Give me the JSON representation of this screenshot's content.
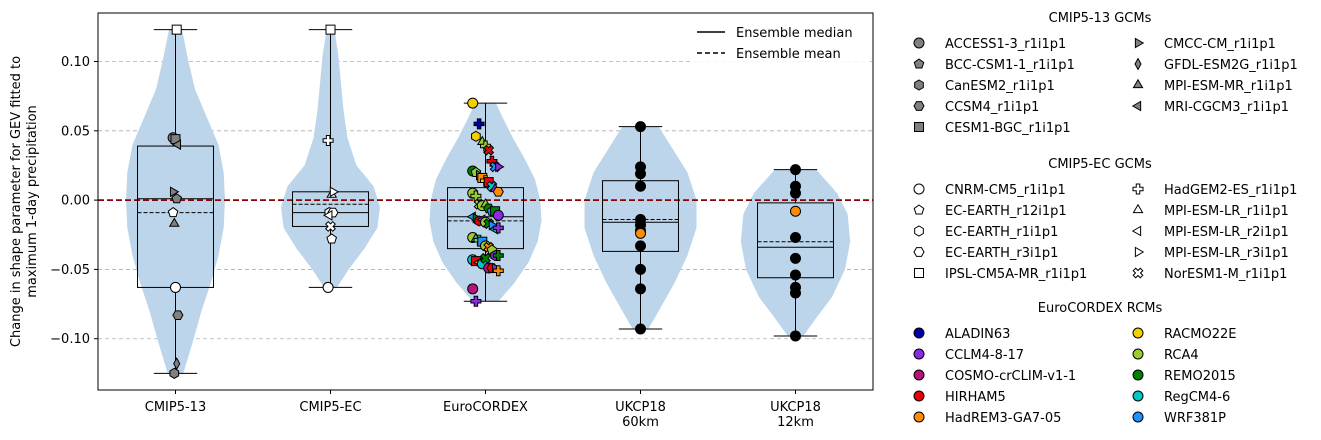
{
  "chart_data": {
    "type": "violin",
    "ylabel_lines": [
      "Change in shape parameter for GEV fitted to",
      "maximum 1-day precipitation"
    ],
    "ylim": [
      -0.137,
      0.135
    ],
    "yticks": [
      {
        "v": -0.1,
        "t": "−0.10"
      },
      {
        "v": -0.05,
        "t": "−0.05"
      },
      {
        "v": 0.0,
        "t": "0.00"
      },
      {
        "v": 0.05,
        "t": "0.05"
      },
      {
        "v": 0.1,
        "t": "0.10"
      }
    ],
    "grid": "horizontal dashed",
    "reference_line": {
      "value": 0.0,
      "color": "#8b0000",
      "style": "dashed"
    },
    "violin_color": "#bcd5ea",
    "categories": [
      {
        "label": [
          "CMIP5-13"
        ],
        "median": 0.001,
        "mean": -0.009,
        "q1": -0.063,
        "q3": 0.039,
        "min": -0.125,
        "max": 0.123,
        "violin": [
          [
            -0.125,
            0.06
          ],
          [
            -0.1,
            0.14
          ],
          [
            -0.08,
            0.2
          ],
          [
            -0.06,
            0.27
          ],
          [
            -0.04,
            0.33
          ],
          [
            -0.02,
            0.37
          ],
          [
            0.0,
            0.38
          ],
          [
            0.02,
            0.37
          ],
          [
            0.04,
            0.33
          ],
          [
            0.06,
            0.24
          ],
          [
            0.08,
            0.15
          ],
          [
            0.1,
            0.1
          ],
          [
            0.123,
            0.05
          ]
        ],
        "points": [
          {
            "m": "ACCESS1-3_r1i1p1",
            "v": 0.045
          },
          {
            "m": "BCC-CSM1-1_r1i1p1",
            "v": 0.001
          },
          {
            "m": "CanESM2_r1i1p1",
            "v": -0.125
          },
          {
            "m": "CCSM4_r1i1p1",
            "v": -0.083
          },
          {
            "m": "CESM1-BGC_r1i1p1",
            "v": 0.044
          },
          {
            "m": "CMCC-CM_r1i1p1",
            "v": 0.006
          },
          {
            "m": "GFDL-ESM2G_r1i1p1",
            "v": -0.118
          },
          {
            "m": "MPI-ESM-MR_r1i1p1",
            "v": -0.017
          },
          {
            "m": "MRI-CGCM3_r1i1p1",
            "v": 0.04
          },
          {
            "m": "CNRM-CM5_r1i1p1",
            "v": -0.063
          },
          {
            "m": "EC-EARTH_r12i1p1",
            "v": -0.009
          },
          {
            "m": "IPSL-CM5A-MR_r1i1p1",
            "v": 0.123
          }
        ]
      },
      {
        "label": [
          "CMIP5-EC"
        ],
        "median": -0.009,
        "mean": -0.003,
        "q1": -0.019,
        "q3": 0.006,
        "min": -0.063,
        "max": 0.123,
        "violin": [
          [
            -0.063,
            0.05
          ],
          [
            -0.05,
            0.14
          ],
          [
            -0.035,
            0.26
          ],
          [
            -0.02,
            0.36
          ],
          [
            -0.005,
            0.38
          ],
          [
            0.01,
            0.33
          ],
          [
            0.025,
            0.2
          ],
          [
            0.045,
            0.13
          ],
          [
            0.065,
            0.1
          ],
          [
            0.085,
            0.08
          ],
          [
            0.105,
            0.06
          ],
          [
            0.123,
            0.03
          ]
        ],
        "points": [
          {
            "m": "CNRM-CM5_r1i1p1",
            "v": -0.063
          },
          {
            "m": "EC-EARTH_r12i1p1",
            "v": -0.028
          },
          {
            "m": "EC-EARTH_r1i1p1",
            "v": -0.009
          },
          {
            "m": "EC-EARTH_r3i1p1",
            "v": -0.009
          },
          {
            "m": "IPSL-CM5A-MR_r1i1p1",
            "v": 0.123
          },
          {
            "m": "HadGEM2-ES_r1i1p1",
            "v": 0.043
          },
          {
            "m": "MPI-ESM-LR_r1i1p1",
            "v": 0.004
          },
          {
            "m": "MPI-ESM-LR_r2i1p1",
            "v": -0.011
          },
          {
            "m": "MPI-ESM-LR_r3i1p1",
            "v": 0.006
          },
          {
            "m": "NorESM1-M_r1i1p1",
            "v": -0.019
          }
        ]
      },
      {
        "label": [
          "EuroCORDEX"
        ],
        "median": -0.012,
        "mean": -0.015,
        "q1": -0.035,
        "q3": 0.009,
        "min": -0.073,
        "max": 0.07,
        "violin": [
          [
            -0.073,
            0.1
          ],
          [
            -0.06,
            0.22
          ],
          [
            -0.045,
            0.33
          ],
          [
            -0.03,
            0.4
          ],
          [
            -0.015,
            0.43
          ],
          [
            0.0,
            0.42
          ],
          [
            0.015,
            0.38
          ],
          [
            0.03,
            0.3
          ],
          [
            0.045,
            0.21
          ],
          [
            0.06,
            0.13
          ],
          [
            0.07,
            0.08
          ]
        ],
        "points": [
          {
            "m": "RACMO22E",
            "v": 0.07,
            "rcm": "RACMO22E"
          },
          {
            "m": "CanESM2_r1i1p1",
            "v": 0.046,
            "rcm": "RACMO22E"
          },
          {
            "m": "HadGEM2-ES_r1i1p1",
            "v": 0.055,
            "rcm": "ALADIN63"
          },
          {
            "m": "MPI-ESM-MR_r1i1p1",
            "v": 0.042,
            "rcm": "RCA4"
          },
          {
            "m": "HadGEM2-ES_r1i1p1",
            "v": 0.039,
            "rcm": "RCA4"
          },
          {
            "m": "NorESM1-M_r1i1p1",
            "v": 0.036,
            "rcm": "HIRHAM5"
          },
          {
            "m": "HadGEM2-ES_r1i1p1",
            "v": 0.028,
            "rcm": "HIRHAM5"
          },
          {
            "m": "NorESM1-M_r1i1p1",
            "v": 0.024,
            "rcm": "WRF381P"
          },
          {
            "m": "MPI-ESM-LR_r3i1p1",
            "v": 0.024,
            "rcm": "CCLM4-8-17"
          },
          {
            "m": "ACCESS1-3_r1i1p1",
            "v": 0.021,
            "rcm": "REMO2015"
          },
          {
            "m": "BCC-CSM1-1_r1i1p1",
            "v": 0.02,
            "rcm": "RCA4"
          },
          {
            "m": "MPI-ESM-LR_r3i1p1",
            "v": 0.018,
            "rcm": "RegCM4-6"
          },
          {
            "m": "CESM1-BGC_r1i1p1",
            "v": 0.016,
            "rcm": "HadREM3-GA7-05"
          },
          {
            "m": "HadGEM2-ES_r1i1p1",
            "v": 0.014,
            "rcm": "RACMO22E"
          },
          {
            "m": "CESM1-BGC_r1i1p1",
            "v": 0.013,
            "rcm": "HIRHAM5"
          },
          {
            "m": "NorESM1-M_r1i1p1",
            "v": 0.01,
            "rcm": "RegCM4-6"
          },
          {
            "m": "MPI-ESM-MR_r1i1p1",
            "v": 0.008,
            "rcm": "CCLM4-8-17"
          },
          {
            "m": "CCSM4_r1i1p1",
            "v": 0.006,
            "rcm": "HadREM3-GA7-05"
          },
          {
            "m": "ACCESS1-3_r1i1p1",
            "v": 0.005,
            "rcm": "RCA4"
          },
          {
            "m": "HadGEM2-ES_r1i1p1",
            "v": 0.003,
            "rcm": "RCA4"
          },
          {
            "m": "NorESM1-M_r1i1p1",
            "v": -0.003,
            "rcm": "RCA4"
          },
          {
            "m": "ACCESS1-3_r1i1p1",
            "v": -0.004,
            "rcm": "RCA4"
          },
          {
            "m": "MPI-ESM-LR_r1i1p1",
            "v": -0.003,
            "rcm": "RCA4"
          },
          {
            "m": "CCSM4_r1i1p1",
            "v": -0.006,
            "rcm": "REMO2015"
          },
          {
            "m": "BCC-CSM1-1_r1i1p1",
            "v": -0.008,
            "rcm": "WRF381P"
          },
          {
            "m": "CESM1-BGC_r1i1p1",
            "v": -0.008,
            "rcm": "REMO2015"
          },
          {
            "m": "ACCESS1-3_r1i1p1",
            "v": -0.011,
            "rcm": "CCLM4-8-17"
          },
          {
            "m": "MRI-CGCM3_r1i1p1",
            "v": -0.012,
            "rcm": "WRF381P"
          },
          {
            "m": "MPI-ESM-LR_r3i1p1",
            "v": -0.013,
            "rcm": "REMO2015"
          },
          {
            "m": "CanESM2_r1i1p1",
            "v": -0.015,
            "rcm": "HIRHAM5"
          },
          {
            "m": "MPI-ESM-LR_r2i1p1",
            "v": -0.014,
            "rcm": "CCLM4-8-17"
          },
          {
            "m": "ACCESS1-3_r1i1p1",
            "v": -0.016,
            "rcm": "RCA4"
          },
          {
            "m": "NorESM1-M_r1i1p1",
            "v": -0.017,
            "rcm": "REMO2015"
          },
          {
            "m": "CMCC-CM_r1i1p1",
            "v": -0.018,
            "rcm": "WRF381P"
          },
          {
            "m": "MPI-ESM-LR_r2i1p1",
            "v": -0.021,
            "rcm": "RegCM4-6"
          },
          {
            "m": "HadGEM2-ES_r1i1p1",
            "v": -0.02,
            "rcm": "CCLM4-8-17"
          },
          {
            "m": "ACCESS1-3_r1i1p1",
            "v": -0.027,
            "rcm": "RCA4"
          },
          {
            "m": "MPI-ESM-LR_r1i1p1",
            "v": -0.028,
            "rcm": "RegCM4-6"
          },
          {
            "m": "HadGEM2-ES_r1i1p1",
            "v": -0.029,
            "rcm": "RCA4"
          },
          {
            "m": "CESM1-BGC_r1i1p1",
            "v": -0.03,
            "rcm": "WRF381P"
          },
          {
            "m": "ACCESS1-3_r1i1p1",
            "v": -0.033,
            "rcm": "RCA4"
          },
          {
            "m": "NorESM1-M_r1i1p1",
            "v": -0.034,
            "rcm": "HadREM3-GA7-05"
          },
          {
            "m": "EC-EARTH_r12i1p1",
            "v": -0.036,
            "rcm": "RCA4"
          },
          {
            "m": "CanESM2_r1i1p1",
            "v": -0.04,
            "rcm": "CCLM4-8-17"
          },
          {
            "m": "HadGEM2-ES_r1i1p1",
            "v": -0.04,
            "rcm": "REMO2015"
          },
          {
            "m": "ACCESS1-3_r1i1p1",
            "v": -0.043,
            "rcm": "RegCM4-6"
          },
          {
            "m": "CESM1-BGC_r1i1p1",
            "v": -0.044,
            "rcm": "HIRHAM5"
          },
          {
            "m": "MPI-ESM-LR_r2i1p1",
            "v": -0.045,
            "rcm": "HadREM3-GA7-05"
          },
          {
            "m": "ACCESS1-3_r1i1p1",
            "v": -0.046,
            "rcm": "RegCM4-6"
          },
          {
            "m": "NorESM1-M_r1i1p1",
            "v": -0.042,
            "rcm": "REMO2015"
          },
          {
            "m": "ACCESS1-3_r1i1p1",
            "v": -0.049,
            "rcm": "COSMO-crCLIM-v1-1"
          },
          {
            "m": "CCSM4_r1i1p1",
            "v": -0.049,
            "rcm": "HIRHAM5"
          },
          {
            "m": "MPI-ESM-LR_r3i1p1",
            "v": -0.049,
            "rcm": "CCLM4-8-17"
          },
          {
            "m": "HadGEM2-ES_r1i1p1",
            "v": -0.051,
            "rcm": "HadREM3-GA7-05"
          },
          {
            "m": "ACCESS1-3_r1i1p1",
            "v": -0.064,
            "rcm": "COSMO-crCLIM-v1-1"
          },
          {
            "m": "HadGEM2-ES_r1i1p1",
            "v": -0.073,
            "rcm": "CCLM4-8-17"
          }
        ]
      },
      {
        "label": [
          "UKCP18",
          "60km"
        ],
        "median": -0.016,
        "mean": -0.014,
        "q1": -0.037,
        "q3": 0.014,
        "min": -0.093,
        "max": 0.053,
        "violin": [
          [
            -0.093,
            0.06
          ],
          [
            -0.08,
            0.14
          ],
          [
            -0.06,
            0.26
          ],
          [
            -0.04,
            0.36
          ],
          [
            -0.02,
            0.43
          ],
          [
            0.0,
            0.43
          ],
          [
            0.02,
            0.36
          ],
          [
            0.035,
            0.26
          ],
          [
            0.053,
            0.14
          ]
        ],
        "points": [
          {
            "m": "UKCP18-60km",
            "v": 0.053
          },
          {
            "m": "UKCP18-60km",
            "v": 0.024
          },
          {
            "m": "UKCP18-60km",
            "v": 0.019
          },
          {
            "m": "UKCP18-60km",
            "v": 0.01
          },
          {
            "m": "UKCP18-60km",
            "v": -0.014
          },
          {
            "m": "UKCP18-60km",
            "v": -0.018
          },
          {
            "m": "UKCP18-60km",
            "v": -0.022
          },
          {
            "m": "UKCP18-60km",
            "v": -0.024,
            "rcm": "HadREM3-GA7-05"
          },
          {
            "m": "UKCP18-60km",
            "v": -0.033
          },
          {
            "m": "UKCP18-60km",
            "v": -0.05
          },
          {
            "m": "UKCP18-60km",
            "v": -0.064
          },
          {
            "m": "UKCP18-60km",
            "v": -0.093
          }
        ]
      },
      {
        "label": [
          "UKCP18",
          "12km"
        ],
        "median": -0.034,
        "mean": -0.03,
        "q1": -0.056,
        "q3": -0.002,
        "min": -0.098,
        "max": 0.022,
        "violin": [
          [
            -0.098,
            0.06
          ],
          [
            -0.085,
            0.16
          ],
          [
            -0.07,
            0.28
          ],
          [
            -0.05,
            0.38
          ],
          [
            -0.03,
            0.42
          ],
          [
            -0.01,
            0.4
          ],
          [
            0.005,
            0.32
          ],
          [
            0.022,
            0.16
          ]
        ],
        "points": [
          {
            "m": "UKCP18-12km",
            "v": 0.022
          },
          {
            "m": "UKCP18-12km",
            "v": 0.01
          },
          {
            "m": "UKCP18-12km",
            "v": 0.005
          },
          {
            "m": "UKCP18-12km",
            "v": -0.008,
            "rcm": "HadREM3-GA7-05"
          },
          {
            "m": "UKCP18-12km",
            "v": -0.027
          },
          {
            "m": "UKCP18-12km",
            "v": -0.042
          },
          {
            "m": "UKCP18-12km",
            "v": -0.054
          },
          {
            "m": "UKCP18-12km",
            "v": -0.063
          },
          {
            "m": "UKCP18-12km",
            "v": -0.067
          },
          {
            "m": "UKCP18-12km",
            "v": -0.098
          }
        ]
      }
    ],
    "line_legend": [
      {
        "label": "Ensemble median",
        "style": "solid"
      },
      {
        "label": "Ensemble mean",
        "style": "dashed"
      }
    ],
    "legends": [
      {
        "title": "CMIP5-13 GCMs",
        "items": [
          {
            "label": "ACCESS1-3_r1i1p1",
            "marker": "circle",
            "fill": "#808080"
          },
          {
            "label": "BCC-CSM1-1_r1i1p1",
            "marker": "pentagon",
            "fill": "#808080"
          },
          {
            "label": "CanESM2_r1i1p1",
            "marker": "hexagon",
            "fill": "#808080"
          },
          {
            "label": "CCSM4_r1i1p1",
            "marker": "hexagon2",
            "fill": "#808080"
          },
          {
            "label": "CESM1-BGC_r1i1p1",
            "marker": "square",
            "fill": "#808080"
          },
          {
            "label": "CMCC-CM_r1i1p1",
            "marker": "tri-right",
            "fill": "#808080"
          },
          {
            "label": "GFDL-ESM2G_r1i1p1",
            "marker": "thin-diamond",
            "fill": "#808080"
          },
          {
            "label": "MPI-ESM-MR_r1i1p1",
            "marker": "tri-up",
            "fill": "#808080"
          },
          {
            "label": "MRI-CGCM3_r1i1p1",
            "marker": "tri-left",
            "fill": "#808080"
          }
        ]
      },
      {
        "title": "CMIP5-EC GCMs",
        "items": [
          {
            "label": "CNRM-CM5_r1i1p1",
            "marker": "circle",
            "fill": "#ffffff"
          },
          {
            "label": "EC-EARTH_r12i1p1",
            "marker": "pentagon",
            "fill": "#ffffff"
          },
          {
            "label": "EC-EARTH_r1i1p1",
            "marker": "hexagon",
            "fill": "#ffffff"
          },
          {
            "label": "EC-EARTH_r3i1p1",
            "marker": "hexagon2",
            "fill": "#ffffff"
          },
          {
            "label": "IPSL-CM5A-MR_r1i1p1",
            "marker": "square",
            "fill": "#ffffff"
          },
          {
            "label": "HadGEM2-ES_r1i1p1",
            "marker": "plus",
            "fill": "#ffffff"
          },
          {
            "label": "MPI-ESM-LR_r1i1p1",
            "marker": "tri-up",
            "fill": "#ffffff"
          },
          {
            "label": "MPI-ESM-LR_r2i1p1",
            "marker": "tri-left",
            "fill": "#ffffff"
          },
          {
            "label": "MPI-ESM-LR_r3i1p1",
            "marker": "tri-right",
            "fill": "#ffffff"
          },
          {
            "label": "NorESM1-M_r1i1p1",
            "marker": "x",
            "fill": "#ffffff"
          }
        ]
      },
      {
        "title": "EuroCORDEX RCMs",
        "items": [
          {
            "label": "ALADIN63",
            "marker": "circle",
            "fill": "#0000aa"
          },
          {
            "label": "CCLM4-8-17",
            "marker": "circle",
            "fill": "#8a2be2"
          },
          {
            "label": "COSMO-crCLIM-v1-1",
            "marker": "circle",
            "fill": "#b5157a"
          },
          {
            "label": "HIRHAM5",
            "marker": "circle",
            "fill": "#e8000b"
          },
          {
            "label": "HadREM3-GA7-05",
            "marker": "circle",
            "fill": "#ff8c00"
          },
          {
            "label": "RACMO22E",
            "marker": "circle",
            "fill": "#f5d000"
          },
          {
            "label": "RCA4",
            "marker": "circle",
            "fill": "#9acd32"
          },
          {
            "label": "REMO2015",
            "marker": "circle",
            "fill": "#008000"
          },
          {
            "label": "RegCM4-6",
            "marker": "circle",
            "fill": "#00c8c8"
          },
          {
            "label": "WRF381P",
            "marker": "circle",
            "fill": "#1e90ff"
          }
        ]
      }
    ]
  }
}
